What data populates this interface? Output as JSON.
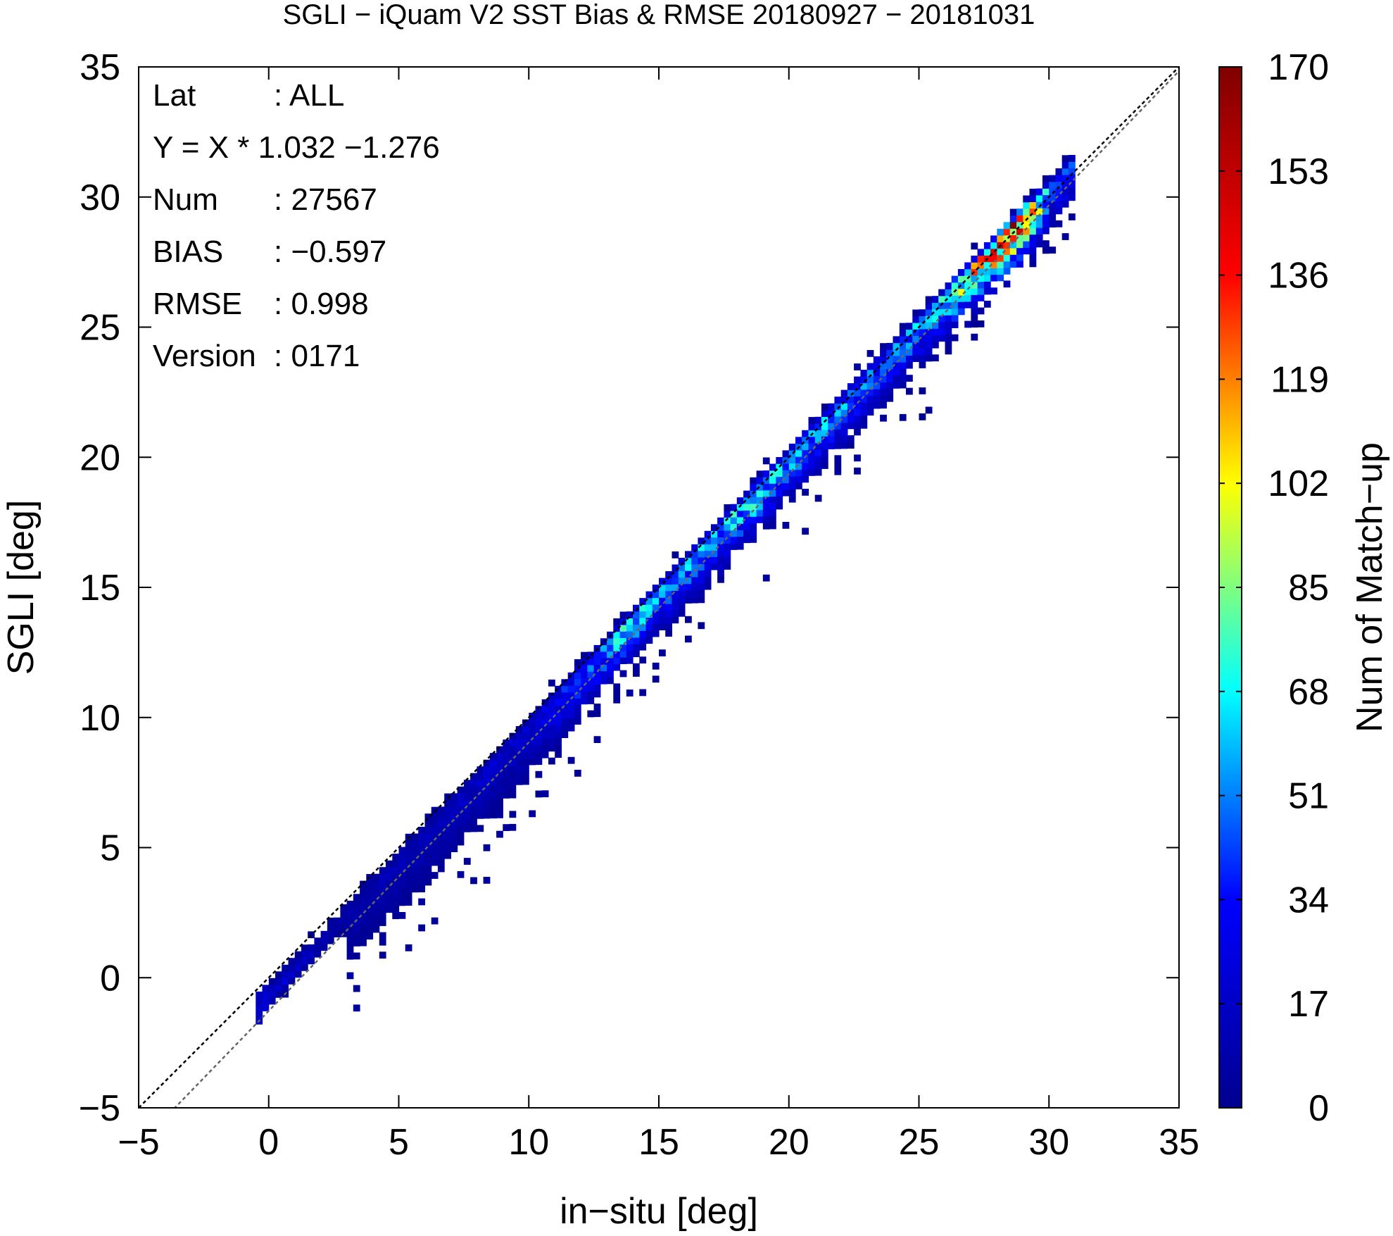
{
  "chart_data": {
    "type": "heatmap",
    "title": "SGLI − iQuam V2 SST Bias & RMSE 20180927 − 20181031",
    "xlabel": "in−situ [deg]",
    "ylabel": "SGLI [deg]",
    "xlim": [
      -5,
      35
    ],
    "ylim": [
      -5,
      35
    ],
    "xticks": [
      "−5",
      "0",
      "5",
      "10",
      "15",
      "20",
      "25",
      "30",
      "35"
    ],
    "yticks": [
      "−5",
      "0",
      "5",
      "10",
      "15",
      "20",
      "25",
      "30",
      "35"
    ],
    "grid": false,
    "reference_lines": [
      {
        "name": "1:1 line",
        "slope": 1.0,
        "intercept": 0.0,
        "color": "#000000"
      },
      {
        "name": "regression",
        "slope": 1.032,
        "intercept": -1.276,
        "color": "#666666"
      }
    ],
    "stats": [
      {
        "label": "Lat",
        "value": ": ALL"
      },
      {
        "label": "Y = X * 1.032 −1.276",
        "value": ""
      },
      {
        "label": "Num",
        "value": ": 27567"
      },
      {
        "label": "BIAS",
        "value": ": −0.597"
      },
      {
        "label": "RMSE",
        "value": ": 0.998"
      },
      {
        "label": "Version",
        "value": ": 0171"
      }
    ],
    "colorbar": {
      "label": "Num of Match−up",
      "min": 0,
      "max": 170,
      "ticks": [
        "0",
        "17",
        "34",
        "51",
        "68",
        "85",
        "102",
        "119",
        "136",
        "153",
        "170"
      ],
      "colors": [
        "#00008f",
        "#0000ff",
        "#00ffff",
        "#ffff00",
        "#ff0000",
        "#800000"
      ]
    },
    "density_ridge": [
      {
        "x": -0.3,
        "y": -0.5,
        "count": 25
      },
      {
        "x": 2.5,
        "y": 2.3,
        "count": 8
      },
      {
        "x": 4.5,
        "y": 4.3,
        "count": 12
      },
      {
        "x": 7.0,
        "y": 6.6,
        "count": 15
      },
      {
        "x": 10.0,
        "y": 9.6,
        "count": 22
      },
      {
        "x": 12.5,
        "y": 12.0,
        "count": 50
      },
      {
        "x": 13.5,
        "y": 13.0,
        "count": 70
      },
      {
        "x": 15.0,
        "y": 14.5,
        "count": 55
      },
      {
        "x": 17.0,
        "y": 16.5,
        "count": 60
      },
      {
        "x": 18.5,
        "y": 18.0,
        "count": 75
      },
      {
        "x": 20.0,
        "y": 19.5,
        "count": 60
      },
      {
        "x": 22.0,
        "y": 21.5,
        "count": 55
      },
      {
        "x": 24.0,
        "y": 23.5,
        "count": 50
      },
      {
        "x": 25.5,
        "y": 25.0,
        "count": 65
      },
      {
        "x": 26.5,
        "y": 26.2,
        "count": 100
      },
      {
        "x": 27.5,
        "y": 27.5,
        "count": 120
      },
      {
        "x": 28.3,
        "y": 28.0,
        "count": 160
      },
      {
        "x": 29.0,
        "y": 28.8,
        "count": 150
      },
      {
        "x": 30.0,
        "y": 29.8,
        "count": 40
      }
    ]
  }
}
